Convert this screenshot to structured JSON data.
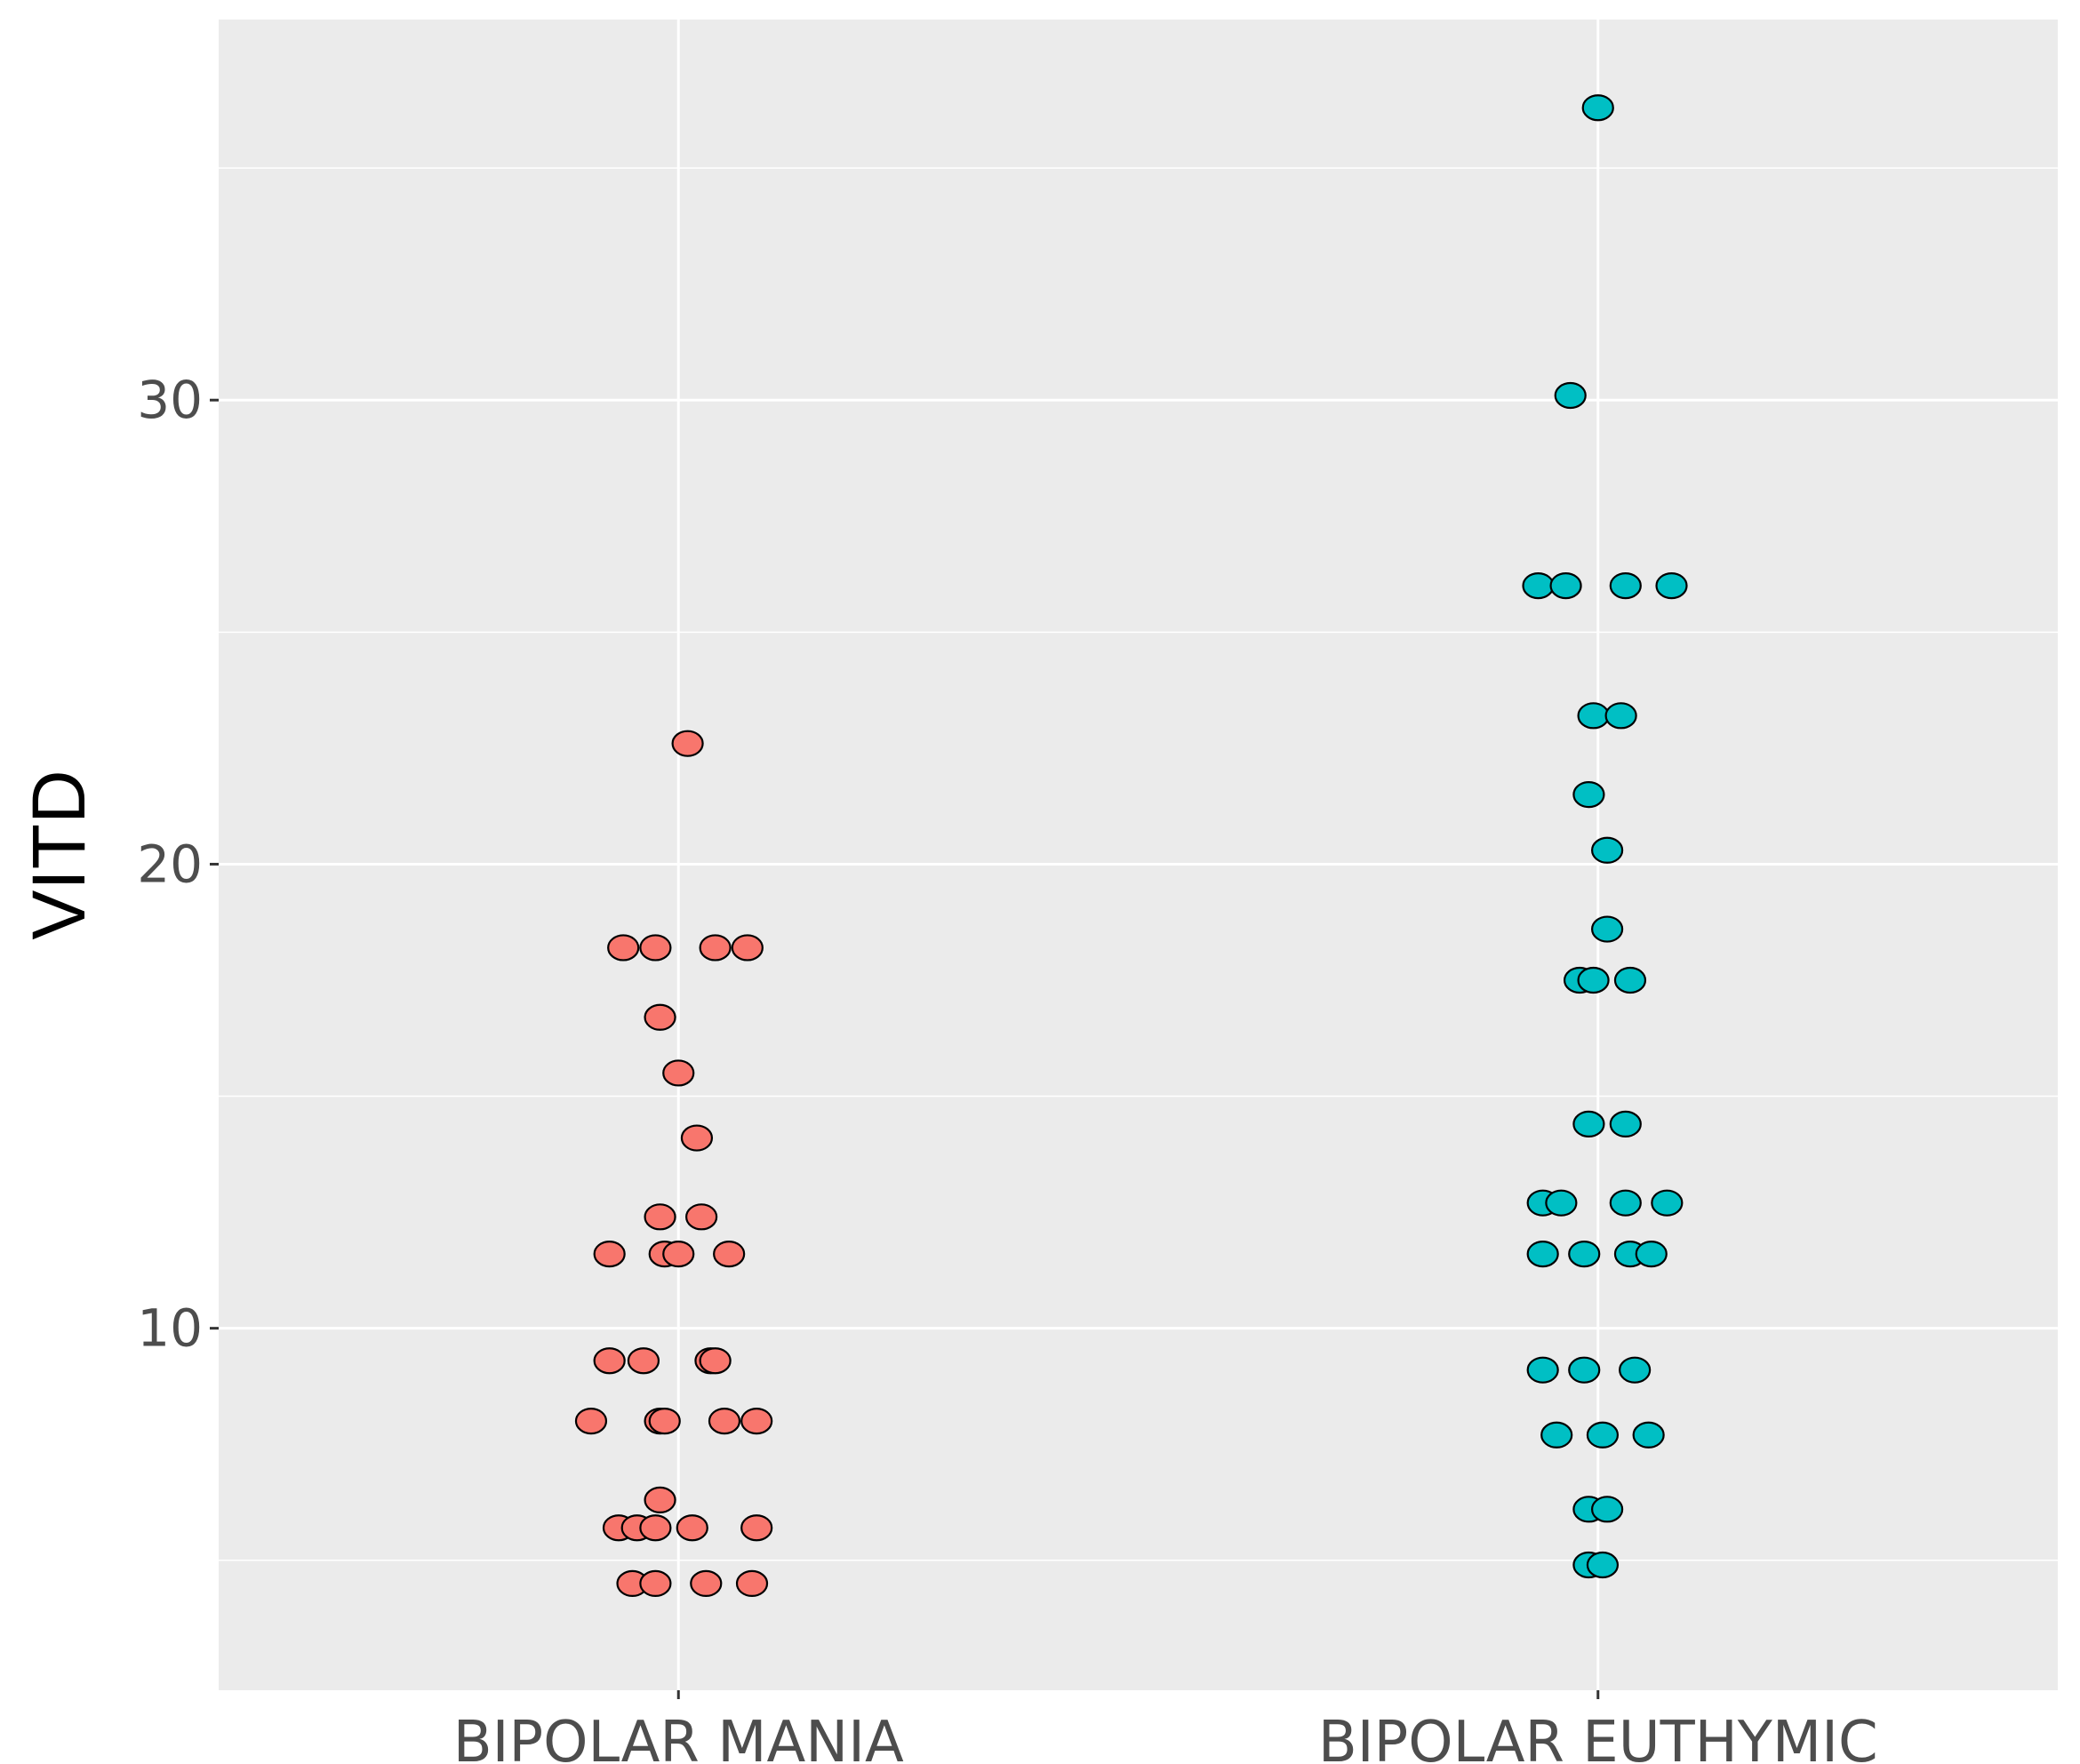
{
  "chart_data": {
    "type": "scatter",
    "style": "jittered dot strip plot",
    "title": "",
    "xlabel": "",
    "ylabel": "VITD",
    "ylim": [
      2.2,
      38.2
    ],
    "yticks": [
      10,
      20,
      30
    ],
    "categories": [
      "BIPOLAR MANIA",
      "BIPOLAR EUTHYMIC"
    ],
    "grid": true,
    "legend": "none",
    "series": [
      {
        "name": "BIPOLAR MANIA",
        "color": "#F8766D",
        "points": [
          {
            "offset": 0.01,
            "y": 22.6
          },
          {
            "offset": -0.06,
            "y": 18.2
          },
          {
            "offset": -0.025,
            "y": 18.2
          },
          {
            "offset": 0.04,
            "y": 18.2
          },
          {
            "offset": 0.075,
            "y": 18.2
          },
          {
            "offset": -0.02,
            "y": 16.7
          },
          {
            "offset": 0.0,
            "y": 15.5
          },
          {
            "offset": 0.02,
            "y": 14.1
          },
          {
            "offset": -0.02,
            "y": 12.4
          },
          {
            "offset": 0.025,
            "y": 12.4
          },
          {
            "offset": -0.075,
            "y": 11.6
          },
          {
            "offset": -0.015,
            "y": 11.6
          },
          {
            "offset": 0.0,
            "y": 11.6
          },
          {
            "offset": 0.055,
            "y": 11.6
          },
          {
            "offset": -0.075,
            "y": 9.3
          },
          {
            "offset": -0.038,
            "y": 9.3
          },
          {
            "offset": 0.035,
            "y": 9.3
          },
          {
            "offset": 0.04,
            "y": 9.3
          },
          {
            "offset": -0.095,
            "y": 8.0
          },
          {
            "offset": -0.02,
            "y": 8.0
          },
          {
            "offset": -0.015,
            "y": 8.0
          },
          {
            "offset": 0.05,
            "y": 8.0
          },
          {
            "offset": 0.085,
            "y": 8.0
          },
          {
            "offset": -0.02,
            "y": 6.3
          },
          {
            "offset": -0.065,
            "y": 5.7
          },
          {
            "offset": -0.045,
            "y": 5.7
          },
          {
            "offset": -0.025,
            "y": 5.7
          },
          {
            "offset": 0.015,
            "y": 5.7
          },
          {
            "offset": 0.085,
            "y": 5.7
          },
          {
            "offset": -0.05,
            "y": 4.5
          },
          {
            "offset": -0.025,
            "y": 4.5
          },
          {
            "offset": 0.03,
            "y": 4.5
          },
          {
            "offset": 0.08,
            "y": 4.5
          }
        ]
      },
      {
        "name": "BIPOLAR EUTHYMIC",
        "color": "#00BFC4",
        "points": [
          {
            "offset": 0.0,
            "y": 36.3
          },
          {
            "offset": -0.03,
            "y": 30.1
          },
          {
            "offset": -0.065,
            "y": 26.0
          },
          {
            "offset": -0.035,
            "y": 26.0
          },
          {
            "offset": 0.03,
            "y": 26.0
          },
          {
            "offset": 0.08,
            "y": 26.0
          },
          {
            "offset": -0.005,
            "y": 23.2
          },
          {
            "offset": 0.025,
            "y": 23.2
          },
          {
            "offset": -0.01,
            "y": 21.5
          },
          {
            "offset": 0.01,
            "y": 20.3
          },
          {
            "offset": 0.01,
            "y": 18.6
          },
          {
            "offset": -0.02,
            "y": 17.5
          },
          {
            "offset": -0.005,
            "y": 17.5
          },
          {
            "offset": 0.035,
            "y": 17.5
          },
          {
            "offset": -0.01,
            "y": 14.4
          },
          {
            "offset": 0.03,
            "y": 14.4
          },
          {
            "offset": -0.06,
            "y": 12.7
          },
          {
            "offset": -0.04,
            "y": 12.7
          },
          {
            "offset": 0.03,
            "y": 12.7
          },
          {
            "offset": 0.075,
            "y": 12.7
          },
          {
            "offset": -0.06,
            "y": 11.6
          },
          {
            "offset": -0.015,
            "y": 11.6
          },
          {
            "offset": 0.035,
            "y": 11.6
          },
          {
            "offset": 0.058,
            "y": 11.6
          },
          {
            "offset": -0.06,
            "y": 9.1
          },
          {
            "offset": -0.015,
            "y": 9.1
          },
          {
            "offset": 0.04,
            "y": 9.1
          },
          {
            "offset": -0.045,
            "y": 7.7
          },
          {
            "offset": 0.005,
            "y": 7.7
          },
          {
            "offset": 0.055,
            "y": 7.7
          },
          {
            "offset": -0.01,
            "y": 6.1
          },
          {
            "offset": 0.01,
            "y": 6.1
          },
          {
            "offset": -0.01,
            "y": 4.9
          },
          {
            "offset": 0.005,
            "y": 4.9
          }
        ]
      }
    ]
  }
}
